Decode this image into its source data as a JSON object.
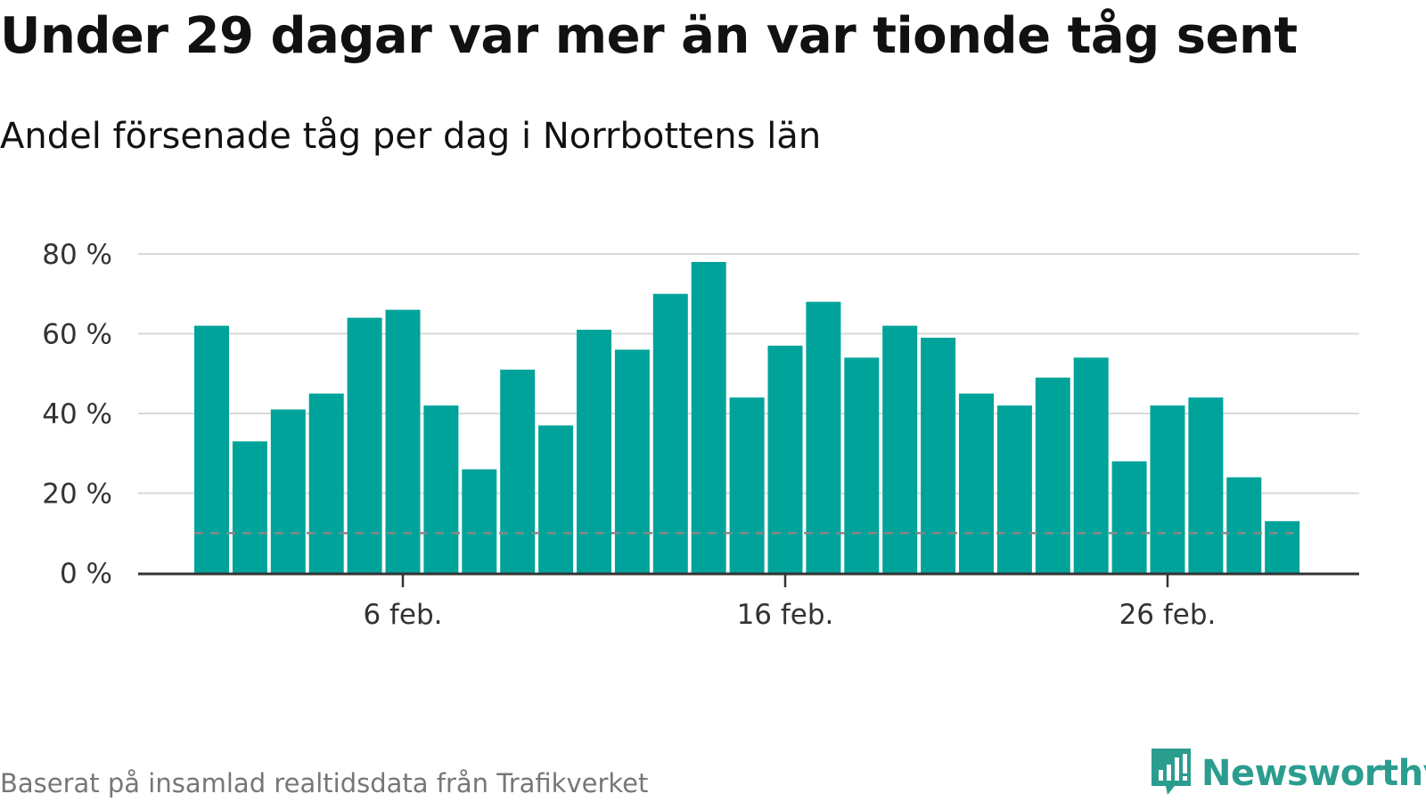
{
  "title": "Under 29 dagar var mer än var tionde tåg sent",
  "subtitle": "Andel försenade tåg per dag i Norrbottens län",
  "footer": "Baserat på insamlad realtidsdata från Trafikverket",
  "brand": {
    "name": "Newsworthy",
    "color": "#2a9d8f",
    "icon": "newsworthy-logo-icon"
  },
  "colors": {
    "bar": "#00a39a",
    "grid": "#d9d9d9",
    "axis": "#333333",
    "threshold": "#888888"
  },
  "chart_data": {
    "type": "bar",
    "x": [
      "2021-02-01",
      "2021-02-02",
      "2021-02-03",
      "2021-02-04",
      "2021-02-05",
      "2021-02-06",
      "2021-02-07",
      "2021-02-08",
      "2021-02-09",
      "2021-02-10",
      "2021-02-11",
      "2021-02-12",
      "2021-02-13",
      "2021-02-14",
      "2021-02-15",
      "2021-02-16",
      "2021-02-17",
      "2021-02-18",
      "2021-02-19",
      "2021-02-20",
      "2021-02-21",
      "2021-02-22",
      "2021-02-23",
      "2021-02-24",
      "2021-02-25",
      "2021-02-26",
      "2021-02-27",
      "2021-02-28",
      "2021-03-01"
    ],
    "values": [
      62,
      33,
      41,
      45,
      64,
      66,
      42,
      26,
      51,
      37,
      61,
      56,
      70,
      78,
      44,
      57,
      68,
      54,
      62,
      59,
      45,
      42,
      49,
      54,
      28,
      42,
      44,
      24,
      13
    ],
    "unit": "%",
    "ylim": [
      0,
      80
    ],
    "yticks": [
      0,
      20,
      40,
      60,
      80
    ],
    "ytick_labels": [
      "0 %",
      "20 %",
      "40 %",
      "60 %",
      "80 %"
    ],
    "xtick_positions": [
      "2021-02-06",
      "2021-02-16",
      "2021-02-26"
    ],
    "xtick_labels": [
      "6 feb.",
      "16 feb.",
      "26 feb."
    ],
    "threshold": 10,
    "threshold_style": "dashed",
    "grid": true,
    "legend": "none"
  }
}
